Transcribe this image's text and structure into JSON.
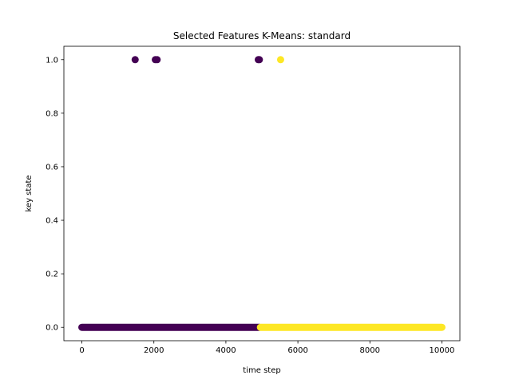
{
  "chart_data": {
    "type": "scatter",
    "title": "Selected Features K-Means: standard",
    "xlabel": "time step",
    "ylabel": "key state",
    "xlim": [
      -500,
      10500
    ],
    "ylim": [
      -0.05,
      1.05
    ],
    "xticks": [
      0,
      2000,
      4000,
      6000,
      8000,
      10000
    ],
    "xtick_labels": [
      "0",
      "2000",
      "4000",
      "6000",
      "8000",
      "10000"
    ],
    "yticks": [
      0.0,
      0.2,
      0.4,
      0.6,
      0.8,
      1.0
    ],
    "ytick_labels": [
      "0.0",
      "0.2",
      "0.4",
      "0.6",
      "0.8",
      "1.0"
    ],
    "grid": false,
    "colors": {
      "cluster_0": "#440154",
      "cluster_1": "#fde725"
    },
    "series": [
      {
        "cluster": 0,
        "color_key": "cluster_0",
        "segments": [
          {
            "y": 0,
            "x_start": 0,
            "x_end": 4930
          }
        ],
        "points": [
          {
            "x": 1480,
            "y": 1
          },
          {
            "x": 2040,
            "y": 1
          },
          {
            "x": 2090,
            "y": 1
          },
          {
            "x": 4900,
            "y": 1
          },
          {
            "x": 4930,
            "y": 1
          }
        ]
      },
      {
        "cluster": 1,
        "color_key": "cluster_1",
        "segments": [
          {
            "y": 0,
            "x_start": 4960,
            "x_end": 10000
          }
        ],
        "points": [
          {
            "x": 5520,
            "y": 1
          }
        ]
      }
    ]
  }
}
